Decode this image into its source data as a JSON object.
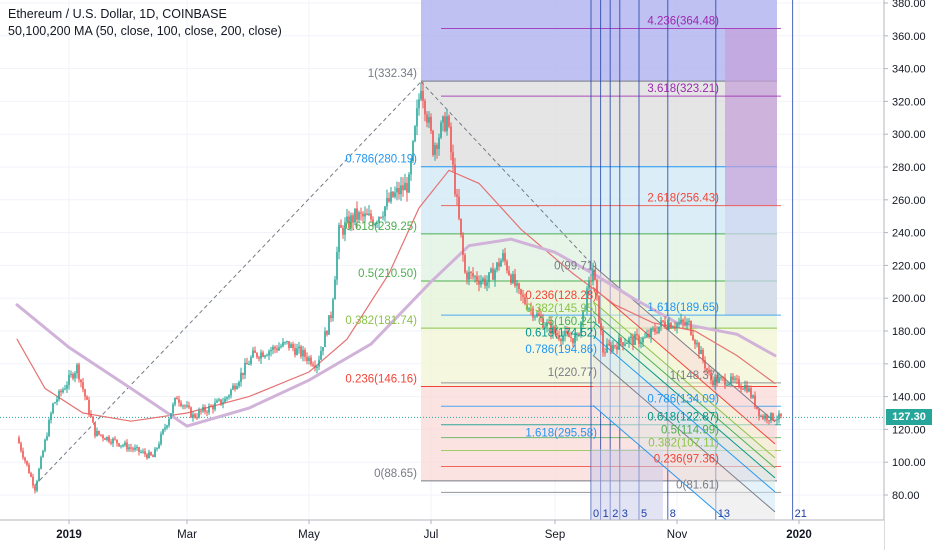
{
  "header": {
    "title": "Ethereum / U.S. Dollar, 1D, COINBASE",
    "indicator": "50,100,200 MA (50, close, 100, close, 200, close)"
  },
  "last_price": "127.30",
  "colors": {
    "up": "#26a69a",
    "down": "#ef5350",
    "ma_short": "#e57373",
    "ma_long": "#d1b3d9",
    "fib_fan": "#f44336"
  },
  "chart_data": {
    "type": "candlestick",
    "title": "Ethereum / U.S. Dollar, 1D, COINBASE",
    "ylim": [
      80,
      380
    ],
    "yticks": [
      "80.00",
      "100.00",
      "120.00",
      "140.00",
      "160.00",
      "180.00",
      "200.00",
      "220.00",
      "240.00",
      "260.00",
      "280.00",
      "300.00",
      "320.00",
      "340.00",
      "360.00",
      "380.00"
    ],
    "xticks": [
      {
        "label": "2019",
        "date": "2019-01-01"
      },
      {
        "label": "Mar",
        "date": "2019-03-01"
      },
      {
        "label": "May",
        "date": "2019-05-01"
      },
      {
        "label": "Jul",
        "date": "2019-07-01"
      },
      {
        "label": "Sep",
        "date": "2019-09-01"
      },
      {
        "label": "Nov",
        "date": "2019-11-01"
      },
      {
        "label": "2020",
        "date": "2020-01-01"
      }
    ],
    "price_path": [
      [
        "2018-12-06",
        115
      ],
      [
        "2018-12-15",
        84
      ],
      [
        "2018-12-24",
        135
      ],
      [
        "2019-01-05",
        158
      ],
      [
        "2019-01-14",
        118
      ],
      [
        "2019-02-02",
        108
      ],
      [
        "2019-02-12",
        103
      ],
      [
        "2019-02-24",
        140
      ],
      [
        "2019-03-04",
        128
      ],
      [
        "2019-03-20",
        138
      ],
      [
        "2019-04-03",
        165
      ],
      [
        "2019-04-20",
        172
      ],
      [
        "2019-05-05",
        160
      ],
      [
        "2019-05-12",
        190
      ],
      [
        "2019-05-16",
        240
      ],
      [
        "2019-05-24",
        250
      ],
      [
        "2019-06-03",
        248
      ],
      [
        "2019-06-12",
        262
      ],
      [
        "2019-06-20",
        270
      ],
      [
        "2019-06-26",
        332
      ],
      [
        "2019-07-02",
        292
      ],
      [
        "2019-07-09",
        310
      ],
      [
        "2019-07-18",
        215
      ],
      [
        "2019-07-29",
        210
      ],
      [
        "2019-08-06",
        225
      ],
      [
        "2019-08-14",
        202
      ],
      [
        "2019-08-24",
        188
      ],
      [
        "2019-09-02",
        178
      ],
      [
        "2019-09-12",
        175
      ],
      [
        "2019-09-20",
        218
      ],
      [
        "2019-09-25",
        168
      ],
      [
        "2019-10-05",
        174
      ],
      [
        "2019-10-16",
        175
      ],
      [
        "2019-10-25",
        185
      ],
      [
        "2019-11-07",
        184
      ],
      [
        "2019-11-18",
        150
      ],
      [
        "2019-11-26",
        150
      ],
      [
        "2019-12-06",
        146
      ],
      [
        "2019-12-13",
        128
      ],
      [
        "2019-12-23",
        127
      ]
    ],
    "moving_averages": [
      {
        "name": "MA 50",
        "color": "#e57373",
        "points": [
          [
            "2018-12-06",
            175
          ],
          [
            "2018-12-20",
            145
          ],
          [
            "2019-01-08",
            130
          ],
          [
            "2019-02-01",
            125
          ],
          [
            "2019-03-01",
            130
          ],
          [
            "2019-04-01",
            140
          ],
          [
            "2019-05-01",
            155
          ],
          [
            "2019-05-20",
            175
          ],
          [
            "2019-06-10",
            215
          ],
          [
            "2019-06-25",
            255
          ],
          [
            "2019-07-10",
            278
          ],
          [
            "2019-07-25",
            270
          ],
          [
            "2019-08-15",
            242
          ],
          [
            "2019-09-10",
            215
          ],
          [
            "2019-10-01",
            196
          ],
          [
            "2019-10-20",
            185
          ],
          [
            "2019-11-10",
            180
          ],
          [
            "2019-12-01",
            165
          ],
          [
            "2019-12-20",
            148
          ]
        ]
      },
      {
        "name": "MA 100",
        "color": "#d1b3d9",
        "points": [
          [
            "2018-12-06",
            196
          ],
          [
            "2019-01-01",
            170
          ],
          [
            "2019-02-01",
            145
          ],
          [
            "2019-03-01",
            122
          ],
          [
            "2019-04-01",
            133
          ],
          [
            "2019-05-01",
            150
          ],
          [
            "2019-06-01",
            172
          ],
          [
            "2019-07-01",
            210
          ],
          [
            "2019-07-20",
            232
          ],
          [
            "2019-08-10",
            236
          ],
          [
            "2019-09-01",
            228
          ],
          [
            "2019-09-20",
            215
          ],
          [
            "2019-10-10",
            200
          ],
          [
            "2019-11-01",
            185
          ],
          [
            "2019-12-01",
            178
          ],
          [
            "2019-12-20",
            165
          ]
        ]
      }
    ],
    "fib_retracement": {
      "levels": [
        {
          "ratio": "1",
          "label": "1(332.34)",
          "price": 332.34
        },
        {
          "ratio": "0.786",
          "label": "0.786(280.19)",
          "price": 280.19
        },
        {
          "ratio": "0.618",
          "label": "0.618(239.25)",
          "price": 239.25
        },
        {
          "ratio": "0.5",
          "label": "0.5(210.50)",
          "price": 210.5
        },
        {
          "ratio": "0.382",
          "label": "0.382(181.74)",
          "price": 181.74
        },
        {
          "ratio": "0.236",
          "label": "0.236(146.16)",
          "price": 146.16
        },
        {
          "ratio": "0",
          "label": "0(88.65)",
          "price": 88.65
        }
      ]
    },
    "fib_extension": {
      "levels": [
        {
          "label": "4.236(364.48)",
          "price": 364.48
        },
        {
          "label": "3.618(323.21)",
          "price": 323.21
        },
        {
          "label": "2.618(256.43)",
          "price": 256.43
        },
        {
          "label": "1.618(189.65)",
          "price": 189.65
        },
        {
          "label": "1(148.37)",
          "price": 148.37
        },
        {
          "label": "0.786(134.09)",
          "price": 134.09
        },
        {
          "label": "0.618(122.87)",
          "price": 122.87
        },
        {
          "label": "0.5(114.99)",
          "price": 114.99
        },
        {
          "label": "0.382(107.11)",
          "price": 107.11
        },
        {
          "label": "0.236(97.36)",
          "price": 97.36
        },
        {
          "label": "0(81.61)",
          "price": 81.61
        }
      ]
    },
    "fib_channel": {
      "levels": [
        {
          "label": "0(99.71)",
          "price": 220
        },
        {
          "label": "0.236(128.28)",
          "price": 202
        },
        {
          "label": "0.382(145.95)",
          "price": 194
        },
        {
          "label": "0.5(160.24)",
          "price": 186
        },
        {
          "label": "0.618(174.52)",
          "price": 179
        },
        {
          "label": "0.786(194.86)",
          "price": 169
        },
        {
          "label": "1(220.77)",
          "price": 155
        },
        {
          "label": "1.618(295.58)",
          "price": 118
        }
      ]
    },
    "time_zones": [
      "0",
      "1",
      "2",
      "3",
      "5",
      "8",
      "13",
      "21"
    ]
  }
}
